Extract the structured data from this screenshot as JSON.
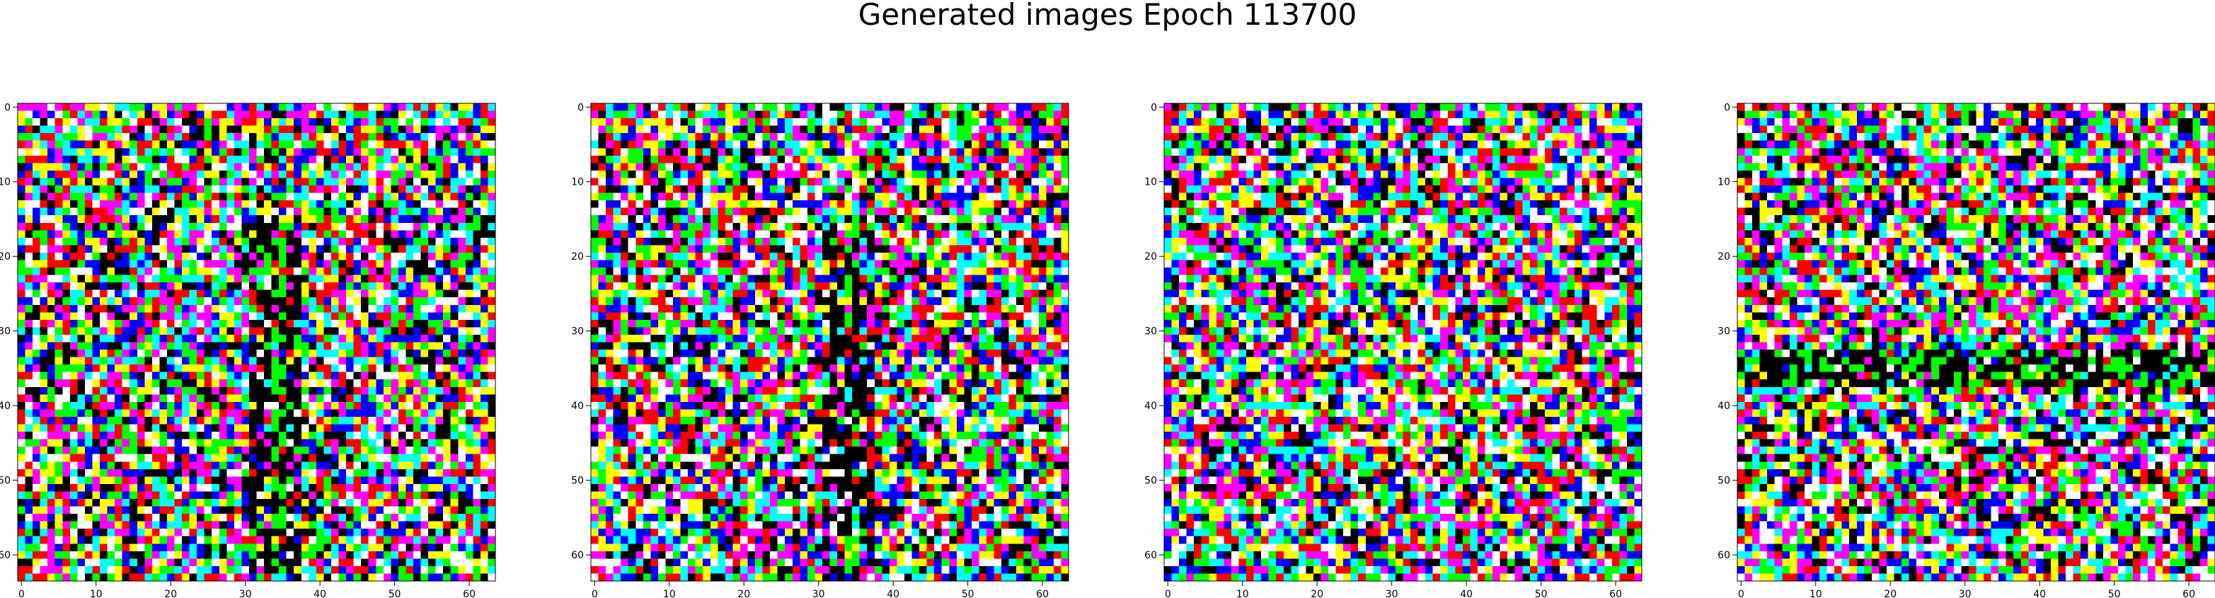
{
  "figure": {
    "title": "Generated images Epoch 113700"
  },
  "chart_data": [
    {
      "type": "heatmap",
      "panel": 1,
      "title": "",
      "xlabel": "",
      "ylabel": "",
      "grid": false,
      "xlim": [
        -0.5,
        63.5
      ],
      "ylim": [
        63.5,
        -0.5
      ],
      "xticks": [
        0,
        10,
        20,
        30,
        40,
        50,
        60
      ],
      "yticks": [
        0,
        10,
        20,
        30,
        40,
        50,
        60
      ],
      "pixel_grid": [
        64,
        64
      ],
      "palette": [
        "#ff0000",
        "#00ff00",
        "#0000ff",
        "#ffff00",
        "#ff00ff",
        "#00ffff",
        "#ffffff",
        "#000000"
      ],
      "pattern": "noise-with-vertical-dark-band",
      "band": {
        "orientation": "vertical",
        "from": 31,
        "to": 37,
        "rows": [
          15,
          63
        ],
        "colors": [
          "#000000",
          "#00ff00"
        ]
      },
      "seed": 11
    },
    {
      "type": "heatmap",
      "panel": 2,
      "title": "",
      "xlabel": "",
      "ylabel": "",
      "grid": false,
      "xlim": [
        -0.5,
        63.5
      ],
      "ylim": [
        63.5,
        -0.5
      ],
      "xticks": [
        0,
        10,
        20,
        30,
        40,
        50,
        60
      ],
      "yticks": [
        0,
        10,
        20,
        30,
        40,
        50,
        60
      ],
      "pixel_grid": [
        64,
        64
      ],
      "palette": [
        "#ff0000",
        "#00ff00",
        "#0000ff",
        "#ffff00",
        "#ff00ff",
        "#00ffff",
        "#ffffff",
        "#000000"
      ],
      "pattern": "noise-with-vertical-dark-band",
      "band": {
        "orientation": "vertical",
        "from": 31,
        "to": 37,
        "rows": [
          15,
          63
        ],
        "colors": [
          "#000000",
          "#00ff00"
        ]
      },
      "seed": 23
    },
    {
      "type": "heatmap",
      "panel": 3,
      "title": "",
      "xlabel": "",
      "ylabel": "",
      "grid": false,
      "xlim": [
        -0.5,
        63.5
      ],
      "ylim": [
        63.5,
        -0.5
      ],
      "xticks": [
        0,
        10,
        20,
        30,
        40,
        50,
        60
      ],
      "yticks": [
        0,
        10,
        20,
        30,
        40,
        50,
        60
      ],
      "pixel_grid": [
        64,
        64
      ],
      "palette": [
        "#ff0000",
        "#00ff00",
        "#0000ff",
        "#ffff00",
        "#ff00ff",
        "#00ffff",
        "#ffffff",
        "#000000"
      ],
      "pattern": "noise",
      "band": null,
      "seed": 37
    },
    {
      "type": "heatmap",
      "panel": 4,
      "title": "",
      "xlabel": "",
      "ylabel": "",
      "grid": false,
      "xlim": [
        -0.5,
        63.5
      ],
      "ylim": [
        63.5,
        -0.5
      ],
      "xticks": [
        0,
        10,
        20,
        30,
        40,
        50,
        60
      ],
      "yticks": [
        0,
        10,
        20,
        30,
        40,
        50,
        60
      ],
      "pixel_grid": [
        64,
        64
      ],
      "palette": [
        "#ff0000",
        "#00ff00",
        "#0000ff",
        "#ffff00",
        "#ff00ff",
        "#00ffff",
        "#ffffff",
        "#000000"
      ],
      "pattern": "noise-with-horizontal-dark-band",
      "band": {
        "orientation": "horizontal",
        "from": 33,
        "to": 37,
        "cols": [
          0,
          63
        ],
        "colors": [
          "#000000",
          "#00ff00"
        ]
      },
      "seed": 53
    }
  ]
}
